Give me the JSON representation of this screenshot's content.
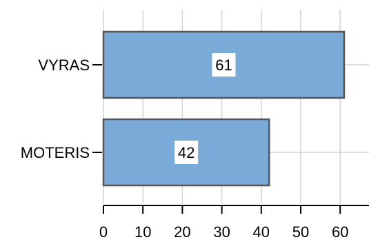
{
  "chart_data": {
    "type": "bar",
    "orientation": "horizontal",
    "categories": [
      "VYRAS",
      "MOTERIS"
    ],
    "values": [
      61,
      42
    ],
    "title": "",
    "xlabel": "",
    "ylabel": "",
    "xlim": [
      0,
      68
    ],
    "xticks": [
      0,
      10,
      20,
      30,
      40,
      50,
      60
    ],
    "grid": true,
    "legend": "none",
    "colors": {
      "bar_fill": "#7aabd8",
      "bar_stroke": "#555555",
      "grid": "#d3d3d3"
    },
    "data_labels": true
  }
}
